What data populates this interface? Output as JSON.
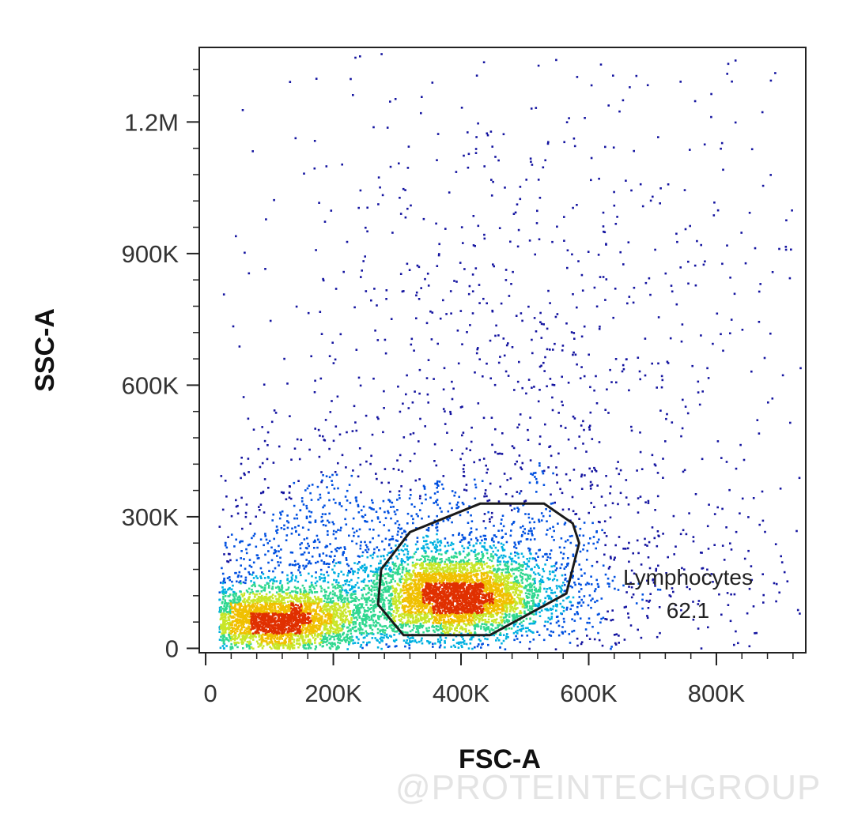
{
  "chart_data": {
    "type": "scatter",
    "xlabel": "FSC-A",
    "ylabel": "SSC-A",
    "xlim": [
      -10000,
      940000
    ],
    "ylim": [
      -10000,
      1370000
    ],
    "x_ticks": [
      {
        "value": 0,
        "label": "0"
      },
      {
        "value": 200000,
        "label": "200K"
      },
      {
        "value": 400000,
        "label": "400K"
      },
      {
        "value": 600000,
        "label": "600K"
      },
      {
        "value": 800000,
        "label": "800K"
      }
    ],
    "y_ticks": [
      {
        "value": 0,
        "label": "0"
      },
      {
        "value": 300000,
        "label": "300K"
      },
      {
        "value": 600000,
        "label": "600K"
      },
      {
        "value": 900000,
        "label": "900K"
      },
      {
        "value": 1200000,
        "label": "1.2M"
      }
    ],
    "density_colormap": [
      "#1414a0",
      "#0050e0",
      "#00b0e0",
      "#30d890",
      "#c8e628",
      "#f0c000",
      "#e03000"
    ],
    "populations": [
      {
        "center": [
          390000,
          120000
        ],
        "spread": [
          70000,
          48000
        ],
        "weight": 0.4
      },
      {
        "center": [
          110000,
          65000
        ],
        "spread": [
          75000,
          38000
        ],
        "weight": 0.3
      },
      {
        "center": [
          300000,
          180000
        ],
        "spread": [
          230000,
          120000
        ],
        "weight": 0.2
      },
      {
        "center": [
          500000,
          600000
        ],
        "spread": [
          240000,
          400000
        ],
        "weight": 0.1
      }
    ],
    "gate": {
      "name": "Lymphocytes",
      "value": "62.1",
      "polygon": [
        [
          430000,
          330000
        ],
        [
          530000,
          330000
        ],
        [
          575000,
          285000
        ],
        [
          585000,
          240000
        ],
        [
          565000,
          125000
        ],
        [
          445000,
          30000
        ],
        [
          310000,
          30000
        ],
        [
          270000,
          100000
        ],
        [
          275000,
          180000
        ],
        [
          320000,
          265000
        ]
      ]
    }
  },
  "watermark": "@PROTEINTECHGROUP"
}
